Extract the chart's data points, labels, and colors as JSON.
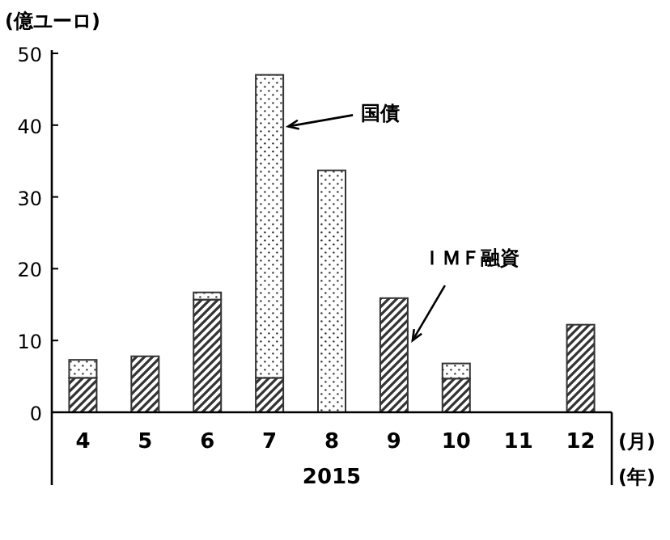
{
  "chart_data": {
    "type": "bar",
    "stacked": true,
    "ylabel": "(億ユーロ)",
    "xlabel": "2015",
    "annotations": [
      "(月)",
      "(年)"
    ],
    "categories": [
      "4",
      "5",
      "6",
      "7",
      "8",
      "9",
      "10",
      "11",
      "12"
    ],
    "series": [
      {
        "name": "ＩＭＦ融資",
        "color": "#333333",
        "values": [
          4.8,
          7.8,
          15.7,
          4.8,
          0,
          15.9,
          4.7,
          0,
          12.2
        ]
      },
      {
        "name": "国債",
        "color": "#333333",
        "values": [
          2.5,
          0,
          1.0,
          42.2,
          33.7,
          0,
          2.1,
          0,
          0
        ]
      }
    ],
    "ylim": [
      0,
      50
    ],
    "yticks": [
      0,
      10,
      20,
      30,
      40,
      50
    ],
    "grid": false
  }
}
